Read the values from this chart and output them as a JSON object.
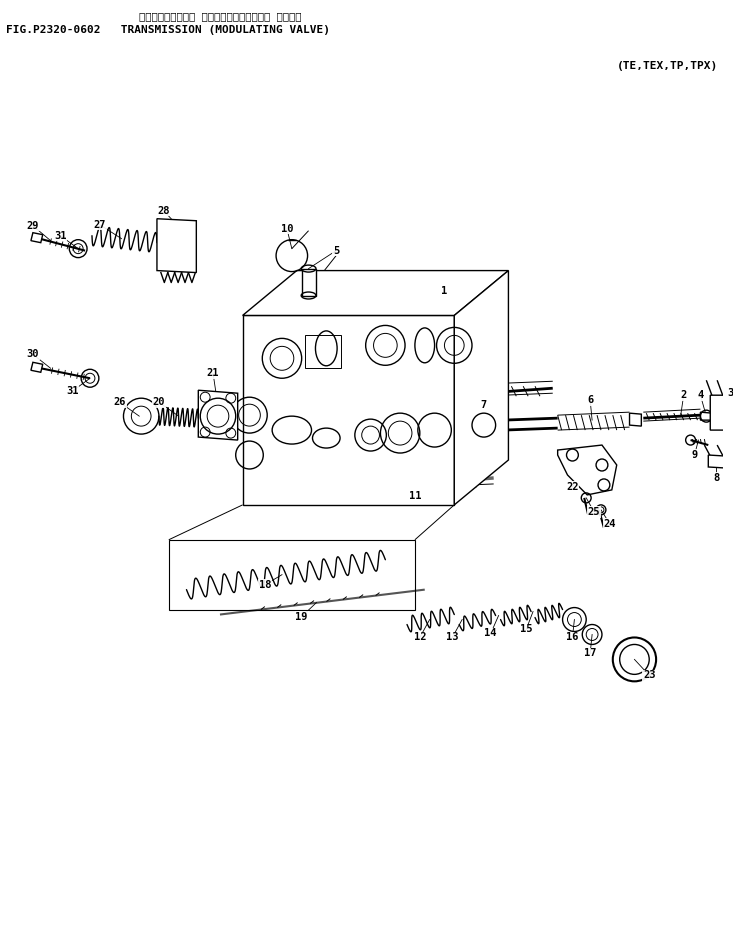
{
  "title_japanese": "トランスミッション （モジュレーティング・ バルブ）",
  "title_english": "FIG.P2320-0602   TRANSMISSION (MODULATING VALVE)",
  "subtitle": "(TE,TEX,TP,TPX)",
  "bg_color": "#ffffff",
  "fig_width": 7.33,
  "fig_height": 9.25,
  "dpi": 100
}
